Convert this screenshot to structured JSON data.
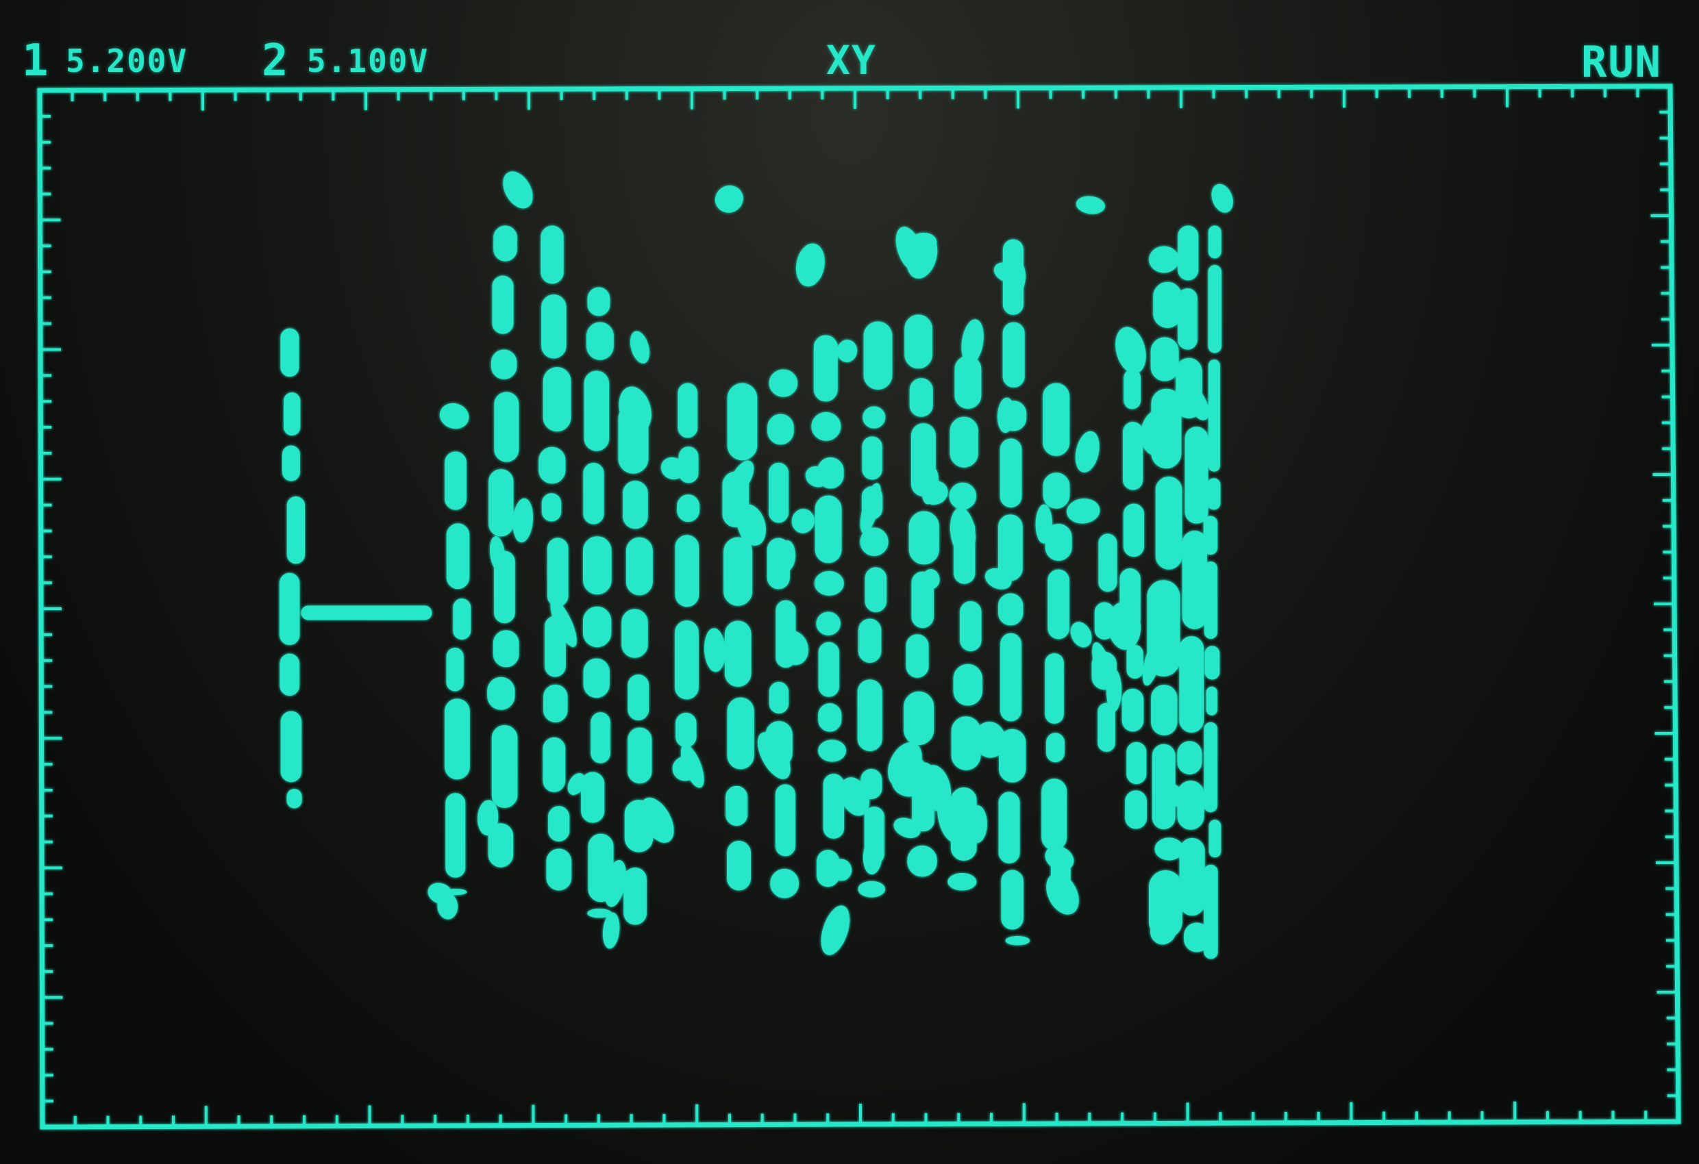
{
  "status_bar": {
    "channel1": {
      "number": "1",
      "scale": "5.200V"
    },
    "channel2": {
      "number": "2",
      "scale": "5.100V"
    },
    "mode": "XY",
    "acquisition": "RUN"
  },
  "colors": {
    "trace": "#26e8c8",
    "graticule": "#26e8c8",
    "background": "#0b0e0d"
  }
}
